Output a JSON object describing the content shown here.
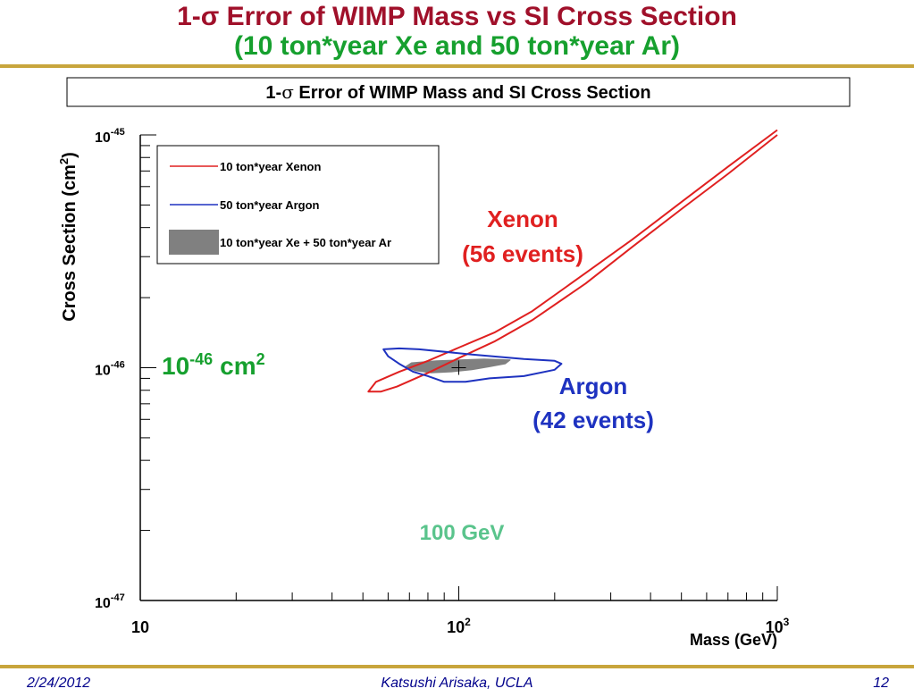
{
  "slide": {
    "title_line1": "1-σ Error of WIMP Mass vs SI Cross Section",
    "title_line2": "(10 ton*year Xe and 50 ton*year Ar)",
    "footer_date": "2/24/2012",
    "footer_author": "Katsushi Arisaka, UCLA",
    "footer_page": "12",
    "colors": {
      "title": "#a0102a",
      "subtitle": "#16a02e",
      "rule": "#c8a53c",
      "footer": "#00008b"
    }
  },
  "chart_data": {
    "type": "scatter",
    "title_prefix": "1-",
    "title_sigma": "σ",
    "title_suffix": " Error of WIMP Mass and SI Cross Section",
    "xlabel": "Mass (GeV)",
    "ylabel": "Cross Section (cm",
    "ylabel_sup": "2",
    "ylabel_end": ")",
    "x_scale": "log",
    "y_scale": "log",
    "xlim": [
      10,
      1000
    ],
    "ylim": [
      1e-47,
      1e-45
    ],
    "x_ticks": [
      {
        "base": "10",
        "exp": ""
      },
      {
        "base": "10",
        "exp": "2"
      },
      {
        "base": "10",
        "exp": "3"
      }
    ],
    "y_ticks": [
      {
        "base": "10",
        "exp": "-47"
      },
      {
        "base": "10",
        "exp": "-46"
      },
      {
        "base": "10",
        "exp": "-45"
      }
    ],
    "true_point": {
      "mass": 100,
      "cross_section": 1e-46
    },
    "legend": {
      "placement": "top-left",
      "entries": [
        {
          "label": "10 ton*year Xenon",
          "color": "#e02020",
          "style": "line"
        },
        {
          "label": "50 ton*year Argon",
          "color": "#1e32c0",
          "style": "line"
        },
        {
          "label": "10 ton*year Xe + 50 ton*year Ar",
          "color": "#808080",
          "style": "fill"
        }
      ]
    },
    "series": [
      {
        "name": "10 ton*year Xenon",
        "color": "#e02020",
        "contour": [
          [
            1000,
            1e-45
          ],
          [
            700,
            6.8e-46
          ],
          [
            500,
            4.8e-46
          ],
          [
            350,
            3.3e-46
          ],
          [
            250,
            2.3e-46
          ],
          [
            170,
            1.6e-46
          ],
          [
            130,
            1.3e-46
          ],
          [
            100,
            1.1e-46
          ],
          [
            80,
            9.5e-47
          ],
          [
            64,
            8.3e-47
          ],
          [
            57,
            7.9e-47
          ],
          [
            52,
            7.9e-47
          ],
          [
            55,
            8.7e-47
          ],
          [
            65,
            9.6e-47
          ],
          [
            80,
            1.07e-46
          ],
          [
            100,
            1.22e-46
          ],
          [
            130,
            1.42e-46
          ],
          [
            170,
            1.75e-46
          ],
          [
            250,
            2.55e-46
          ],
          [
            350,
            3.55e-46
          ],
          [
            500,
            5.15e-46
          ],
          [
            700,
            7.3e-46
          ],
          [
            1000,
            1.05e-45
          ]
        ]
      },
      {
        "name": "50 ton*year Argon",
        "color": "#1e32c0",
        "contour": [
          [
            75,
            1.2e-46
          ],
          [
            110,
            1.14e-46
          ],
          [
            160,
            1.09e-46
          ],
          [
            200,
            1.07e-46
          ],
          [
            210,
            1.04e-46
          ],
          [
            200,
            9.8e-47
          ],
          [
            160,
            9.2e-47
          ],
          [
            125,
            9e-47
          ],
          [
            105,
            8.7e-47
          ],
          [
            90,
            8.7e-47
          ],
          [
            80,
            9.2e-47
          ],
          [
            72,
            9.6e-47
          ],
          [
            65,
            1.04e-46
          ],
          [
            60,
            1.12e-46
          ],
          [
            58,
            1.2e-46
          ],
          [
            65,
            1.21e-46
          ]
        ]
      },
      {
        "name": "10 ton*year Xe + 50 ton*year Ar",
        "color": "#808080",
        "contour": [
          [
            100,
            1.08e-46
          ],
          [
            120,
            1.09e-46
          ],
          [
            145,
            1.08e-46
          ],
          [
            140,
            1.04e-46
          ],
          [
            125,
            1.01e-46
          ],
          [
            110,
            9.8e-47
          ],
          [
            95,
            9.6e-47
          ],
          [
            82,
            9.5e-47
          ],
          [
            73,
            9.7e-47
          ],
          [
            68,
            1.01e-46
          ],
          [
            71,
            1.05e-46
          ],
          [
            85,
            1.07e-46
          ]
        ]
      }
    ],
    "annotations": [
      {
        "lines": [
          "Xenon",
          "(56 events)"
        ],
        "color": "#e02020"
      },
      {
        "lines": [
          "Argon",
          "(42 events)"
        ],
        "color": "#1e32c0"
      },
      {
        "base": "10",
        "exp": "-46",
        "unit": "cm",
        "unit_exp": "2",
        "color": "#16a02e"
      },
      {
        "lines": [
          "100 GeV"
        ],
        "color": "#5ac48c"
      }
    ]
  }
}
